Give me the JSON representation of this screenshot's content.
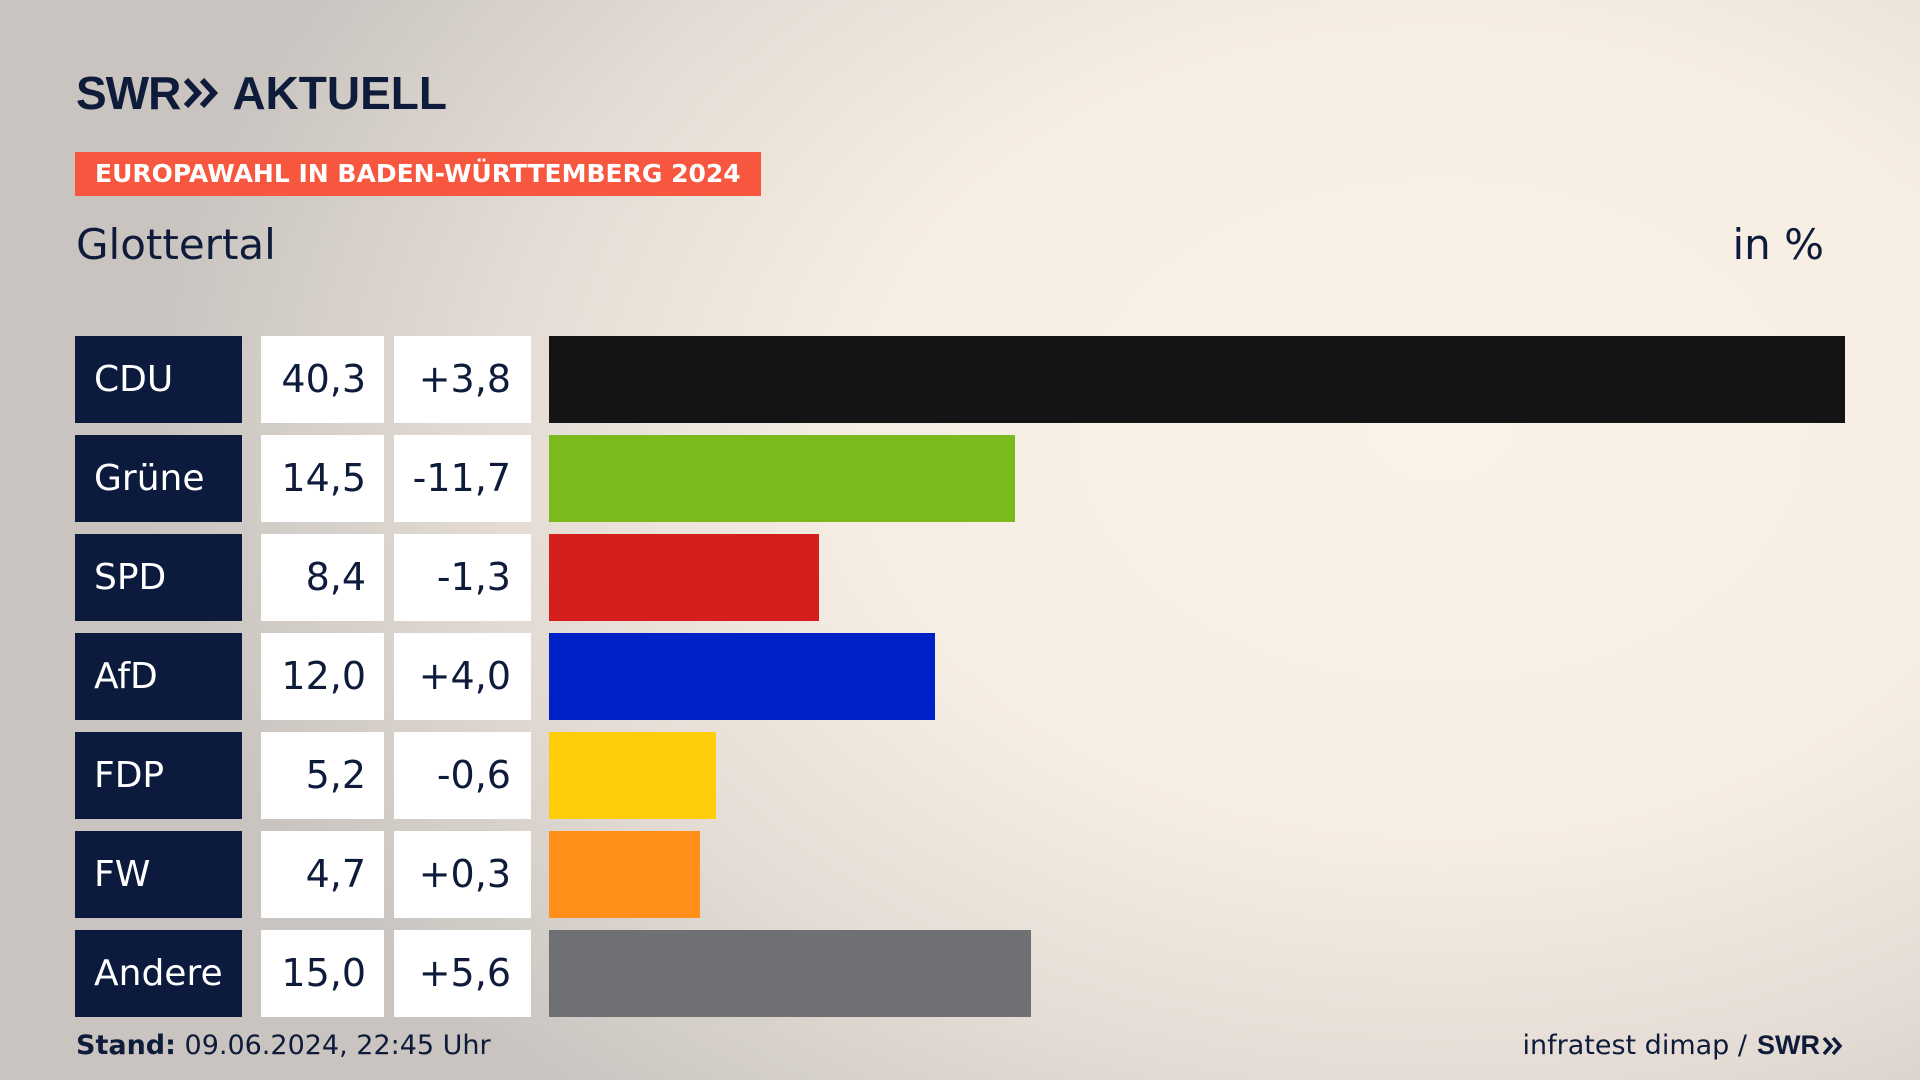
{
  "header": {
    "logo_swr": "SWR",
    "logo_aktuell": "AKTUELL",
    "tag": "EUROPAWAHL IN BADEN-WÜRTTEMBERG 2024",
    "place": "Glottertal",
    "unit": "in %"
  },
  "footer": {
    "stand_label": "Stand:",
    "stand_value": "09.06.2024, 22:45 Uhr",
    "source": "infratest dimap /",
    "source_logo": "SWR"
  },
  "colors": {
    "brand_navy": "#0c1b3d",
    "tag_red": "#f7573e"
  },
  "chart_data": {
    "type": "bar",
    "orientation": "horizontal",
    "categories": [
      "CDU",
      "Grüne",
      "SPD",
      "AfD",
      "FDP",
      "FW",
      "Andere"
    ],
    "values": [
      40.3,
      14.5,
      8.4,
      12.0,
      5.2,
      4.7,
      15.0
    ],
    "value_labels": [
      "40,3",
      "14,5",
      "8,4",
      "12,0",
      "5,2",
      "4,7",
      "15,0"
    ],
    "diff_labels": [
      "+3,8",
      "-11,7",
      "-1,3",
      "+4,0",
      "-0,6",
      "+0,3",
      "+5,6"
    ],
    "diffs": [
      3.8,
      -11.7,
      -1.3,
      4.0,
      -0.6,
      0.3,
      5.6
    ],
    "colors": [
      "#141414",
      "#7aba1d",
      "#d51f1f",
      "#0021c7",
      "#ffcd0a",
      "#ff8f19",
      "#6f7073"
    ],
    "xlim": [
      0,
      40.3
    ],
    "grid": false,
    "legend": "none"
  }
}
